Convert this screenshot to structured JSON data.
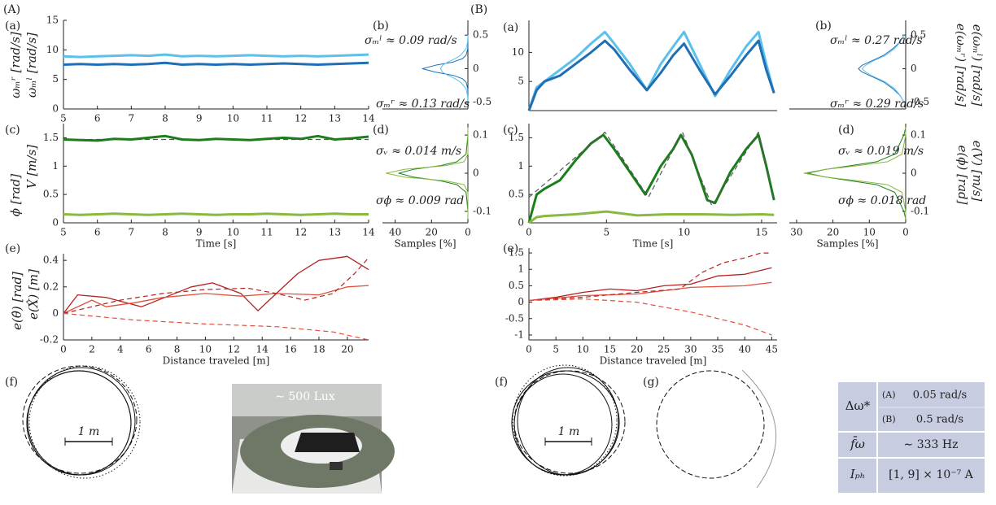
{
  "figure_labels": [
    "(A)",
    "(B)"
  ],
  "chart_data": [
    {
      "type": "line",
      "panel_label": "(a)",
      "ylabels": [
        {
          "text": "ωₘʳ [rad/s]",
          "color": "#5bc0eb"
        },
        {
          "text": "ωₘˡ [rad/s]",
          "color": "#1f6fb4"
        }
      ],
      "xlim": [
        5,
        14
      ],
      "ylim": [
        0,
        15
      ],
      "xticks": [
        5,
        6,
        7,
        8,
        9,
        10,
        11,
        12,
        13,
        14
      ],
      "yticks": [
        0,
        5,
        10,
        15
      ],
      "x": [
        5,
        5.5,
        6,
        6.5,
        7,
        7.5,
        8,
        8.5,
        9,
        9.5,
        10,
        10.5,
        11,
        11.5,
        12,
        12.5,
        13,
        13.5,
        14
      ],
      "series": [
        {
          "color": "#5bc0eb",
          "values": [
            8.9,
            8.8,
            8.9,
            9.0,
            9.1,
            9.0,
            9.2,
            8.9,
            9.0,
            8.9,
            9.0,
            9.1,
            9.0,
            8.9,
            9.0,
            8.9,
            9.0,
            9.1,
            9.2
          ]
        },
        {
          "color": "#1f6fb4",
          "values": [
            7.5,
            7.6,
            7.5,
            7.6,
            7.5,
            7.6,
            7.8,
            7.5,
            7.6,
            7.5,
            7.6,
            7.5,
            7.6,
            7.7,
            7.6,
            7.5,
            7.6,
            7.7,
            7.8
          ]
        }
      ]
    },
    {
      "type": "line",
      "orientation": "horizontal",
      "panel_label": "(b)",
      "xlim": [
        47,
        0
      ],
      "ylim": [
        -0.6,
        0.72
      ],
      "yticks": [
        0.5,
        0,
        -0.5
      ],
      "x": [
        -0.5,
        -0.4,
        -0.3,
        -0.2,
        -0.15,
        -0.1,
        -0.05,
        0,
        0.05,
        0.1,
        0.15,
        0.2,
        0.3,
        0.4,
        0.5
      ],
      "series": [
        {
          "color": "#1f6fb4",
          "values": [
            0,
            0,
            0.1,
            1,
            3,
            8,
            18,
            25,
            18,
            8,
            3,
            1,
            0.1,
            0,
            0
          ]
        },
        {
          "color": "#5bc0eb",
          "values": [
            0,
            0.2,
            1,
            4,
            7,
            11,
            14,
            15,
            14,
            11,
            7,
            4,
            1,
            0.2,
            0
          ]
        }
      ],
      "annotations": [
        {
          "text": "σₘˡ ≈ 0.09 rad/s",
          "color": "#1f6fb4"
        },
        {
          "text": "σₘʳ ≈ 0.13 rad/s",
          "color": "#5bc0eb"
        }
      ]
    },
    {
      "type": "line",
      "panel_label": "(c)",
      "xlabel": "Time [s]",
      "ylabels": [
        {
          "text": "ϕ [rad]",
          "color": "#8ab840"
        },
        {
          "text": "V [m/s]",
          "color": "#1a7f1a"
        }
      ],
      "xlim": [
        5,
        14
      ],
      "ylim": [
        0,
        1.75
      ],
      "xticks": [
        5,
        6,
        7,
        8,
        9,
        10,
        11,
        12,
        13,
        14
      ],
      "yticks": [
        0,
        0.5,
        1,
        1.5
      ],
      "x": [
        5,
        5.5,
        6,
        6.5,
        7,
        7.5,
        8,
        8.5,
        9,
        9.5,
        10,
        10.5,
        11,
        11.5,
        12,
        12.5,
        13,
        13.5,
        14
      ],
      "series": [
        {
          "color": "#1a7f1a",
          "values": [
            1.47,
            1.46,
            1.45,
            1.48,
            1.47,
            1.5,
            1.53,
            1.47,
            1.46,
            1.48,
            1.47,
            1.46,
            1.48,
            1.5,
            1.48,
            1.53,
            1.47,
            1.49,
            1.52
          ]
        },
        {
          "color": "#555555",
          "style": "dashed",
          "x": [
            5,
            14
          ],
          "values": [
            1.47,
            1.47
          ]
        },
        {
          "color": "#8ab840",
          "values": [
            0.15,
            0.14,
            0.15,
            0.16,
            0.15,
            0.14,
            0.15,
            0.16,
            0.15,
            0.14,
            0.15,
            0.15,
            0.16,
            0.15,
            0.14,
            0.15,
            0.16,
            0.15,
            0.15
          ]
        }
      ]
    },
    {
      "type": "line",
      "orientation": "horizontal",
      "panel_label": "(d)",
      "xlabel": "Samples [%]",
      "xlim": [
        47,
        0
      ],
      "ylim": [
        -0.13,
        0.13
      ],
      "xticks": [
        40,
        20,
        0
      ],
      "yticks": [
        0.1,
        0,
        -0.1
      ],
      "x": [
        -0.12,
        -0.1,
        -0.05,
        -0.03,
        -0.02,
        -0.01,
        0,
        0.01,
        0.02,
        0.03,
        0.05,
        0.1,
        0.12
      ],
      "series": [
        {
          "color": "#1a7f1a",
          "values": [
            0,
            0,
            1,
            6,
            15,
            30,
            38,
            30,
            15,
            6,
            1,
            0,
            0
          ]
        },
        {
          "color": "#8ab840",
          "values": [
            0,
            0,
            0,
            2,
            12,
            35,
            45,
            35,
            12,
            2,
            0,
            0,
            0
          ]
        }
      ],
      "annotations": [
        {
          "text": "σᵥ ≈ 0.014 m/s",
          "color": "#1a7f1a"
        },
        {
          "text": "σϕ ≈ 0.009 rad",
          "color": "#8ab840"
        }
      ]
    },
    {
      "type": "line",
      "panel_label": "(e)",
      "xlabel": "Distance traveled [m]",
      "ylabels": [
        {
          "text": "e(θ̂) [rad]",
          "color": "#e0503a"
        },
        {
          "text": "e(X̂) [m]",
          "color": "#b22222"
        }
      ],
      "xlim": [
        0,
        21.5
      ],
      "ylim": [
        -0.2,
        0.45
      ],
      "xticks": [
        0,
        2,
        4,
        6,
        8,
        10,
        12,
        14,
        16,
        18,
        20
      ],
      "yticks": [
        -0.2,
        0,
        0.2,
        0.4
      ],
      "series": [
        {
          "color": "#b22222",
          "x": [
            0,
            1,
            3,
            5.5,
            9,
            10.5,
            12.5,
            13.7,
            15,
            16.5,
            18,
            20,
            21.5
          ],
          "values": [
            0,
            0.14,
            0.12,
            0.05,
            0.2,
            0.23,
            0.15,
            0.02,
            0.15,
            0.3,
            0.4,
            0.43,
            0.33
          ]
        },
        {
          "color": "#e0503a",
          "x": [
            0,
            2,
            3,
            5,
            7,
            10,
            12.5,
            15,
            18,
            20,
            21.5
          ],
          "values": [
            0,
            0.1,
            0.05,
            0.08,
            0.12,
            0.15,
            0.13,
            0.15,
            0.14,
            0.2,
            0.21
          ]
        },
        {
          "color": "#b22222",
          "style": "dashed",
          "x": [
            0,
            2,
            4,
            7,
            10,
            13,
            15,
            17,
            19,
            20.5,
            21.5
          ],
          "values": [
            0,
            0.05,
            0.1,
            0.15,
            0.18,
            0.19,
            0.15,
            0.1,
            0.15,
            0.3,
            0.42
          ]
        },
        {
          "color": "#e0503a",
          "style": "dashed",
          "x": [
            0,
            2,
            5,
            10,
            15,
            19,
            21.5
          ],
          "values": [
            0,
            -0.02,
            -0.05,
            -0.08,
            -0.1,
            -0.14,
            -0.2
          ]
        }
      ]
    },
    {
      "type": "line",
      "panel_label": "(a)",
      "xlim": [
        0,
        16
      ],
      "ylim": [
        0,
        15.5
      ],
      "yticks": [
        5,
        10
      ],
      "x": [
        0,
        0.5,
        1,
        2,
        3,
        4,
        4.9,
        5.5,
        6.5,
        7.6,
        8.5,
        9.3,
        10,
        11,
        12,
        13,
        14,
        14.8,
        15.3,
        15.8
      ],
      "series": [
        {
          "color": "#5bc0eb",
          "values": [
            0,
            4,
            5,
            7,
            9,
            11.5,
            13.5,
            11.5,
            8,
            3.5,
            8,
            11,
            13.5,
            8,
            2.5,
            7,
            11,
            13.5,
            8,
            3
          ]
        },
        {
          "color": "#1f6fb4",
          "values": [
            0,
            3.5,
            5,
            6,
            8,
            10,
            12,
            10.5,
            7,
            3.5,
            6.5,
            9.5,
            11.5,
            7,
            2.8,
            6,
            9.5,
            12,
            7,
            3
          ]
        }
      ]
    },
    {
      "type": "line",
      "orientation": "horizontal",
      "panel_label": "(b)",
      "ylabels": [
        {
          "text": "e(ωₘʳ) [rad/s]",
          "color": "#5bc0eb"
        },
        {
          "text": "e(ωₘˡ) [rad/s]",
          "color": "#1f6fb4"
        }
      ],
      "xlim": [
        32,
        0
      ],
      "ylim": [
        -0.6,
        0.72
      ],
      "yticks": [
        0.5,
        0,
        -0.5
      ],
      "x": [
        -0.5,
        -0.4,
        -0.3,
        -0.2,
        -0.15,
        -0.1,
        -0.05,
        0,
        0.05,
        0.1,
        0.15,
        0.2,
        0.3,
        0.4,
        0.5
      ],
      "series": [
        {
          "color": "#1f6fb4",
          "values": [
            0.5,
            1.5,
            3.5,
            6,
            8,
            10,
            12,
            13,
            12,
            10,
            8,
            6,
            3.5,
            1.5,
            0.5
          ]
        },
        {
          "color": "#5bc0eb",
          "values": [
            0.5,
            1.5,
            3,
            5.5,
            7.5,
            9.5,
            11,
            12,
            11,
            9.5,
            7.5,
            5.5,
            3,
            1.5,
            0.5
          ]
        }
      ],
      "annotations": [
        {
          "text": "σₘˡ ≈ 0.27 rad/s",
          "color": "#1f6fb4"
        },
        {
          "text": "σₘʳ ≈ 0.29 rad/s",
          "color": "#5bc0eb"
        }
      ]
    },
    {
      "type": "line",
      "panel_label": "(c)",
      "xlabel": "Time [s]",
      "xlim": [
        0,
        16
      ],
      "ylim": [
        0,
        1.75
      ],
      "xticks": [
        0,
        5,
        10,
        15
      ],
      "yticks": [
        0,
        0.5,
        1,
        1.5
      ],
      "series": [
        {
          "color": "#1a7f1a",
          "x": [
            0,
            0.5,
            1,
            2,
            3,
            4,
            4.8,
            5.5,
            6.5,
            7.5,
            8.5,
            9.3,
            9.8,
            10.5,
            11.5,
            12,
            13,
            14,
            14.8,
            15.3,
            15.8
          ],
          "values": [
            0,
            0.5,
            0.6,
            0.75,
            1.1,
            1.4,
            1.55,
            1.3,
            0.9,
            0.5,
            1.0,
            1.3,
            1.55,
            1.2,
            0.4,
            0.35,
            0.9,
            1.3,
            1.55,
            1.0,
            0.4
          ]
        },
        {
          "color": "#555555",
          "style": "dashed",
          "x": [
            0,
            4.9,
            7.7,
            9.9,
            11.8,
            14.8,
            15.8
          ],
          "values": [
            0.45,
            1.6,
            0.45,
            1.6,
            0.3,
            1.6,
            0.4
          ]
        },
        {
          "color": "#8ab840",
          "x": [
            0,
            0.5,
            1,
            3,
            5,
            7,
            9,
            11,
            13,
            15,
            15.8
          ],
          "values": [
            0,
            0.1,
            0.12,
            0.15,
            0.2,
            0.13,
            0.15,
            0.15,
            0.14,
            0.15,
            0.14
          ]
        }
      ]
    },
    {
      "type": "line",
      "orientation": "horizontal",
      "panel_label": "(d)",
      "xlabel": "Samples [%]",
      "ylabels": [
        {
          "text": "e(ϕ) [rad]",
          "color": "#8ab840"
        },
        {
          "text": "e(V) [m/s]",
          "color": "#1a7f1a"
        }
      ],
      "xlim": [
        32,
        0
      ],
      "ylim": [
        -0.13,
        0.13
      ],
      "xticks": [
        30,
        20,
        10,
        0
      ],
      "yticks": [
        0.1,
        0,
        -0.1
      ],
      "x": [
        -0.12,
        -0.1,
        -0.05,
        -0.03,
        -0.02,
        -0.01,
        0,
        0.01,
        0.02,
        0.03,
        0.05,
        0.1,
        0.12
      ],
      "series": [
        {
          "color": "#1a7f1a",
          "values": [
            0,
            0.5,
            3,
            8,
            15,
            22,
            27,
            22,
            15,
            8,
            3,
            0.5,
            0
          ]
        },
        {
          "color": "#8ab840",
          "values": [
            0,
            0,
            1,
            5,
            13,
            22,
            28,
            22,
            13,
            5,
            1,
            0,
            0
          ]
        }
      ],
      "annotations": [
        {
          "text": "σᵥ ≈ 0.019 m/s",
          "color": "#1a7f1a"
        },
        {
          "text": "σϕ ≈ 0.018 rad",
          "color": "#8ab840"
        }
      ]
    },
    {
      "type": "line",
      "panel_label": "(e)",
      "xlabel": "Distance traveled [m]",
      "xlim": [
        0,
        46
      ],
      "ylim": [
        -1.15,
        1.65
      ],
      "xticks": [
        0,
        5,
        10,
        15,
        20,
        25,
        30,
        35,
        40,
        45
      ],
      "yticks": [
        -1,
        -0.5,
        0,
        0.5,
        1,
        1.5
      ],
      "series": [
        {
          "color": "#b22222",
          "x": [
            0,
            5,
            10,
            15,
            20,
            25,
            30,
            35,
            40,
            45
          ],
          "values": [
            0.05,
            0.15,
            0.3,
            0.4,
            0.35,
            0.5,
            0.55,
            0.8,
            0.85,
            1.05
          ]
        },
        {
          "color": "#e0503a",
          "x": [
            0,
            10,
            20,
            30,
            40,
            45
          ],
          "values": [
            0.05,
            0.2,
            0.25,
            0.45,
            0.5,
            0.6
          ]
        },
        {
          "color": "#b22222",
          "style": "dashed",
          "x": [
            0,
            10,
            20,
            28,
            32,
            36,
            40,
            43,
            45
          ],
          "values": [
            0.05,
            0.15,
            0.3,
            0.4,
            0.9,
            1.2,
            1.35,
            1.5,
            1.5
          ]
        },
        {
          "color": "#e0503a",
          "style": "dashed",
          "x": [
            0,
            10,
            20,
            30,
            40,
            45
          ],
          "values": [
            0.05,
            0.1,
            0,
            -0.3,
            -0.7,
            -1.0
          ]
        }
      ]
    }
  ],
  "trajectories": {
    "panel_labels": [
      "(f)",
      "(f)",
      "(g)"
    ],
    "scale_labels": [
      "1 m",
      "1 m"
    ]
  },
  "photo": {
    "caption": "∼ 500 Lux"
  },
  "table": {
    "rows": [
      {
        "label": "Δω*",
        "entries": [
          {
            "key": "(A)",
            "value": "0.05 rad/s"
          },
          {
            "key": "(B)",
            "value": "0.5 rad/s"
          }
        ]
      },
      {
        "label": "f̄ω",
        "value": "∼ 333 Hz"
      },
      {
        "label": "Iₚₕ",
        "value": "[1, 9] × 10⁻⁷ A"
      }
    ]
  }
}
